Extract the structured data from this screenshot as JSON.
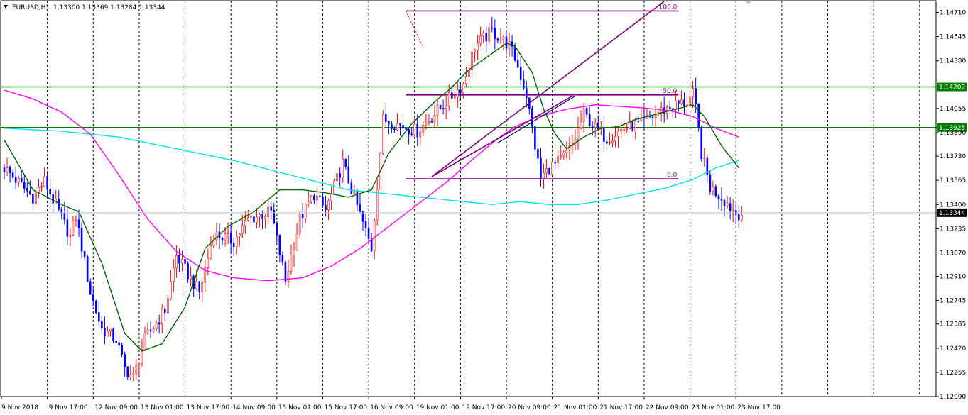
{
  "chart_data": {
    "type": "candlestick",
    "symbol": "EURUSD,H1",
    "ohlc_readout": "1.13300 1.13369 1.13284 1.13344",
    "y_range": [
      1.1209,
      1.1479
    ],
    "y_ticks": [
      "1.14710",
      "1.14545",
      "1.14380",
      "1.14202",
      "1.14055",
      "1.13925",
      "1.13890",
      "1.13730",
      "1.13565",
      "1.13400",
      "1.13344",
      "1.13235",
      "1.13070",
      "1.12910",
      "1.12745",
      "1.12585",
      "1.12420",
      "1.12255",
      "1.12090"
    ],
    "x_labels": [
      "9 Nov 2018",
      "9 Nov 17:00",
      "12 Nov 09:00",
      "13 Nov 01:00",
      "13 Nov 17:00",
      "14 Nov 09:00",
      "15 Nov 01:00",
      "15 Nov 17:00",
      "16 Nov 09:00",
      "19 Nov 01:00",
      "19 Nov 17:00",
      "20 Nov 09:00",
      "21 Nov 01:00",
      "21 Nov 17:00",
      "22 Nov 09:00",
      "23 Nov 01:00",
      "23 Nov 17:00"
    ],
    "bars_total": 210,
    "current_price": 1.13344,
    "horizontal_levels": [
      {
        "price": 1.14202,
        "label": "1.14202",
        "color": "#008000"
      },
      {
        "price": 1.13925,
        "label": "1.13925",
        "color": "#008000"
      }
    ],
    "fibonacci": {
      "color": "#800080",
      "start_bar": 140,
      "end_bar": 235,
      "high": 1.1472,
      "low": 1.13575,
      "levels": [
        {
          "ratio": 1.0,
          "label": "100.0"
        },
        {
          "ratio": 0.5,
          "label": "50.0"
        },
        {
          "ratio": 0.0,
          "label": "0.0"
        }
      ]
    },
    "trendlines": [
      {
        "from": [
          149,
          1.1359
        ],
        "to": [
          230,
          1.14785
        ],
        "color": "#800080",
        "width": 1.6
      },
      {
        "from": [
          149,
          1.1359
        ],
        "to": [
          198,
          1.1414
        ],
        "color": "#800080",
        "width": 1.6
      },
      {
        "from": [
          172,
          1.1382
        ],
        "to": [
          199,
          1.1414
        ],
        "color": "#000080",
        "width": 1.2
      }
    ],
    "colors": {
      "bull": "#ff0000",
      "bear": "#0000ff",
      "ma_fast": "#006400",
      "ma_slow": "#ff00ff",
      "ma_long": "#00e5ee",
      "grid": "#000000",
      "background": "#ffffff"
    },
    "price_path": [
      [
        0,
        1.1365
      ],
      [
        10,
        1.1345
      ],
      [
        14,
        1.1356
      ],
      [
        19,
        1.1335
      ],
      [
        23,
        1.1318
      ],
      [
        25,
        1.1332
      ],
      [
        30,
        1.128
      ],
      [
        34,
        1.1255
      ],
      [
        39,
        1.1248
      ],
      [
        42,
        1.1228
      ],
      [
        45,
        1.1222
      ],
      [
        49,
        1.1248
      ],
      [
        56,
        1.1268
      ],
      [
        60,
        1.1305
      ],
      [
        68,
        1.128
      ],
      [
        73,
        1.132
      ],
      [
        80,
        1.1315
      ],
      [
        85,
        1.133
      ],
      [
        93,
        1.1335
      ],
      [
        98,
        1.1288
      ],
      [
        103,
        1.133
      ],
      [
        108,
        1.1347
      ],
      [
        112,
        1.1336
      ],
      [
        118,
        1.1368
      ],
      [
        128,
        1.131
      ],
      [
        132,
        1.1398
      ],
      [
        144,
        1.139
      ],
      [
        150,
        1.1402
      ],
      [
        154,
        1.141
      ],
      [
        160,
        1.1422
      ],
      [
        164,
        1.1448
      ],
      [
        170,
        1.1458
      ],
      [
        175,
        1.145
      ],
      [
        176,
        1.1448
      ],
      [
        178,
        1.144
      ],
      [
        182,
        1.1415
      ],
      [
        185,
        1.138
      ],
      [
        187,
        1.1358
      ],
      [
        190,
        1.1365
      ],
      [
        194,
        1.137
      ],
      [
        198,
        1.138
      ],
      [
        202,
        1.1402
      ],
      [
        206,
        1.1392
      ],
      [
        210,
        1.1385
      ],
      [
        216,
        1.1392
      ],
      [
        222,
        1.1395
      ],
      [
        228,
        1.1403
      ],
      [
        234,
        1.1408
      ],
      [
        238,
        1.141
      ],
      [
        240,
        1.1415
      ],
      [
        241,
        1.1405
      ],
      [
        243,
        1.1375
      ],
      [
        246,
        1.1352
      ],
      [
        250,
        1.1345
      ],
      [
        255,
        1.1334
      ],
      [
        258,
        1.1334
      ]
    ],
    "ma_fast_path": [
      [
        0,
        1.1384
      ],
      [
        10,
        1.135
      ],
      [
        20,
        1.134
      ],
      [
        26,
        1.1335
      ],
      [
        34,
        1.13
      ],
      [
        42,
        1.1252
      ],
      [
        48,
        1.124
      ],
      [
        55,
        1.1245
      ],
      [
        63,
        1.127
      ],
      [
        70,
        1.131
      ],
      [
        78,
        1.1325
      ],
      [
        87,
        1.1335
      ],
      [
        96,
        1.135
      ],
      [
        104,
        1.135
      ],
      [
        112,
        1.1348
      ],
      [
        120,
        1.1345
      ],
      [
        128,
        1.135
      ],
      [
        134,
        1.1375
      ],
      [
        142,
        1.1395
      ],
      [
        150,
        1.141
      ],
      [
        156,
        1.142
      ],
      [
        162,
        1.1432
      ],
      [
        170,
        1.1443
      ],
      [
        175,
        1.145
      ],
      [
        178,
        1.1448
      ],
      [
        184,
        1.143
      ],
      [
        188,
        1.1405
      ],
      [
        192,
        1.1388
      ],
      [
        196,
        1.1378
      ],
      [
        202,
        1.1386
      ],
      [
        208,
        1.1392
      ],
      [
        214,
        1.1393
      ],
      [
        220,
        1.1398
      ],
      [
        228,
        1.1402
      ],
      [
        236,
        1.1406
      ],
      [
        240,
        1.1408
      ],
      [
        244,
        1.14
      ],
      [
        250,
        1.138
      ],
      [
        256,
        1.1365
      ]
    ],
    "ma_slow_path": [
      [
        0,
        1.1418
      ],
      [
        10,
        1.1412
      ],
      [
        20,
        1.1403
      ],
      [
        30,
        1.1388
      ],
      [
        40,
        1.136
      ],
      [
        50,
        1.133
      ],
      [
        60,
        1.1308
      ],
      [
        70,
        1.1295
      ],
      [
        80,
        1.129
      ],
      [
        92,
        1.1288
      ],
      [
        104,
        1.129
      ],
      [
        114,
        1.1298
      ],
      [
        124,
        1.131
      ],
      [
        134,
        1.1325
      ],
      [
        144,
        1.134
      ],
      [
        154,
        1.1355
      ],
      [
        164,
        1.1372
      ],
      [
        172,
        1.1385
      ],
      [
        178,
        1.1393
      ],
      [
        186,
        1.14
      ],
      [
        196,
        1.1405
      ],
      [
        206,
        1.1408
      ],
      [
        214,
        1.1407
      ],
      [
        222,
        1.1406
      ],
      [
        232,
        1.1404
      ],
      [
        240,
        1.14
      ],
      [
        248,
        1.1392
      ],
      [
        256,
        1.1386
      ]
    ],
    "ma_long_path": [
      [
        0,
        1.1392
      ],
      [
        20,
        1.139
      ],
      [
        40,
        1.1386
      ],
      [
        60,
        1.1378
      ],
      [
        80,
        1.137
      ],
      [
        100,
        1.136
      ],
      [
        120,
        1.135
      ],
      [
        140,
        1.1346
      ],
      [
        160,
        1.1342
      ],
      [
        170,
        1.134
      ],
      [
        180,
        1.1342
      ],
      [
        190,
        1.134
      ],
      [
        200,
        1.134
      ],
      [
        210,
        1.1343
      ],
      [
        220,
        1.1347
      ],
      [
        230,
        1.1351
      ],
      [
        240,
        1.1357
      ],
      [
        248,
        1.1365
      ],
      [
        256,
        1.137
      ]
    ]
  }
}
